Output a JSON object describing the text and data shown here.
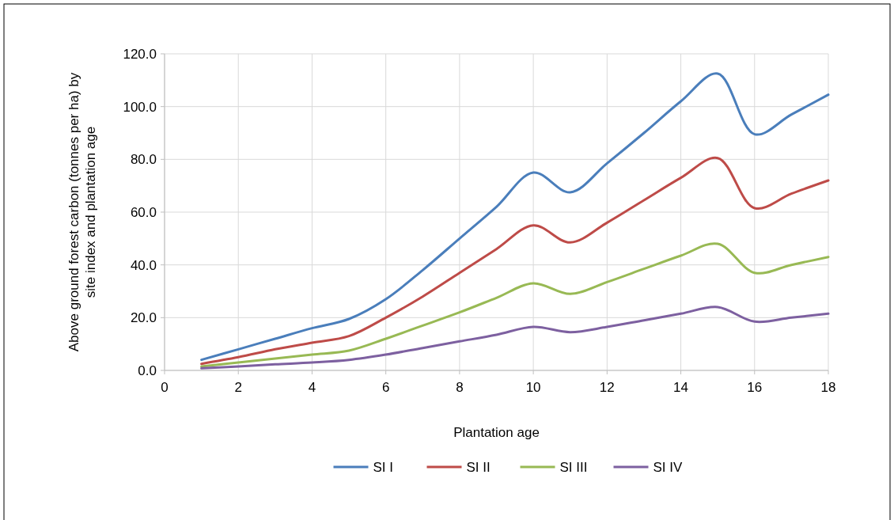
{
  "chart_data": {
    "type": "line",
    "xlabel": "Plantation age",
    "ylabel": "Above ground forest carbon (tonnes per ha) by site index and plantation age",
    "x": [
      1,
      2,
      3,
      4,
      5,
      6,
      7,
      8,
      9,
      10,
      11,
      12,
      13,
      14,
      15,
      16,
      17,
      18
    ],
    "series": [
      {
        "name": "SI I",
        "color": "#4a7ebb",
        "values": [
          4,
          8,
          12,
          16,
          19.5,
          27,
          38,
          50,
          62,
          75,
          67.5,
          78.5,
          90,
          102,
          112.5,
          89.5,
          97,
          104.5
        ]
      },
      {
        "name": "SI II",
        "color": "#be4b48",
        "values": [
          2.5,
          5,
          8,
          10.5,
          13,
          20,
          28,
          37,
          46,
          55,
          48.5,
          56,
          64.5,
          73,
          80.5,
          61.5,
          67,
          72
        ]
      },
      {
        "name": "SI III",
        "color": "#98b954",
        "values": [
          1.5,
          3,
          4.5,
          6,
          7.5,
          12,
          17,
          22,
          27.5,
          33,
          29,
          33.5,
          38.5,
          43.5,
          48,
          37,
          40,
          43
        ]
      },
      {
        "name": "SI IV",
        "color": "#7d60a0",
        "values": [
          0.8,
          1.5,
          2.3,
          3,
          4,
          6,
          8.5,
          11,
          13.5,
          16.5,
          14.5,
          16.5,
          19,
          21.5,
          24,
          18.5,
          20,
          21.5
        ]
      }
    ],
    "xlim": [
      0,
      18
    ],
    "xticks": [
      0,
      2,
      4,
      6,
      8,
      10,
      12,
      14,
      16,
      18
    ],
    "ylim": [
      0,
      120
    ],
    "yticks": [
      {
        "value": 0,
        "label": "0.0"
      },
      {
        "value": 20,
        "label": "20.0"
      },
      {
        "value": 40,
        "label": "40.0"
      },
      {
        "value": 60,
        "label": "60.0"
      },
      {
        "value": 80,
        "label": "80.0"
      },
      {
        "value": 100,
        "label": "100.0"
      },
      {
        "value": 120,
        "label": "120.0"
      }
    ],
    "grid": true,
    "legend": "bottom",
    "marker": "none",
    "line_style": "solid"
  }
}
